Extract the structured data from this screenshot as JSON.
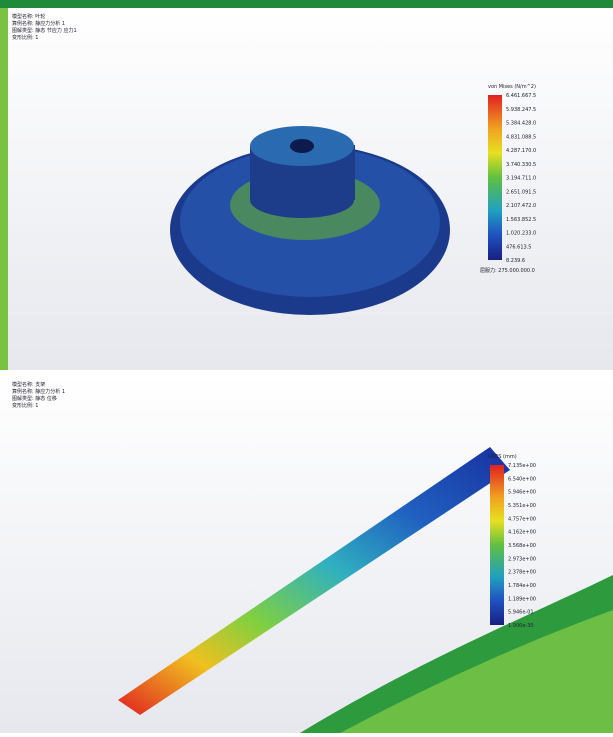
{
  "top_panel": {
    "header": [
      "模型名称: 叶轮",
      "算例名称: 静应力分析 1",
      "图解类型: 静态 节应力 应力1",
      "变形比例: 1"
    ],
    "legend_title": "von Mises (N/m^2)",
    "legend_labels": [
      "6.461.667.5",
      "5.938.247.5",
      "5.384.428.0",
      "4.831.088.5",
      "4.287.170.0",
      "3.740.330.5",
      "3.194.711.0",
      "2.651.091.5",
      "2.107.472.0",
      "1.563.852.5",
      "1.020.233.0",
      "476.613.5",
      "8.239.6"
    ],
    "yield_label": "屈服力: 275.000.000.0"
  },
  "bottom_panel": {
    "header": [
      "模型名称: 支架",
      "算例名称: 静应力分析 1",
      "图解类型: 静态 位移",
      "变形比例: 1"
    ],
    "legend_title": "URES (mm)",
    "legend_labels": [
      "7.135e+00",
      "6.540e+00",
      "5.946e+00",
      "5.351e+00",
      "4.757e+00",
      "4.162e+00",
      "3.568e+00",
      "2.973e+00",
      "2.378e+00",
      "1.784e+00",
      "1.189e+00",
      "5.946e-01",
      "1.000e-30"
    ]
  }
}
